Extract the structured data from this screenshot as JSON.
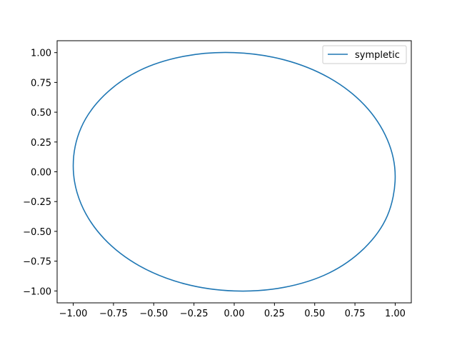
{
  "chart_data": {
    "type": "line",
    "title": "",
    "xlabel": "",
    "ylabel": "",
    "xlim": [
      -1.1,
      1.1
    ],
    "ylim": [
      -1.1,
      1.1
    ],
    "x_ticks": [
      -1.0,
      -0.75,
      -0.5,
      -0.25,
      0.0,
      0.25,
      0.5,
      0.75,
      1.0
    ],
    "x_tick_labels": [
      "−1.00",
      "−0.75",
      "−0.50",
      "−0.25",
      "0.00",
      "0.25",
      "0.50",
      "0.75",
      "1.00"
    ],
    "y_ticks": [
      1.0,
      0.75,
      0.5,
      0.25,
      0.0,
      -0.25,
      -0.5,
      -0.75,
      -1.0
    ],
    "y_tick_labels": [
      "1.00",
      "0.75",
      "0.50",
      "0.25",
      "0.00",
      "−0.25",
      "−0.50",
      "−0.75",
      "−1.00"
    ],
    "grid": false,
    "legend_position": "top-right",
    "series": [
      {
        "name": "sympletic",
        "color": "#1f77b4",
        "x": [
          1.0,
          0.951,
          0.809,
          0.588,
          0.309,
          0.0,
          -0.309,
          -0.588,
          -0.809,
          -0.951,
          -1.0,
          -0.951,
          -0.809,
          -0.588,
          -0.309,
          0.0,
          0.309,
          0.588,
          0.809,
          0.951,
          1.0
        ],
        "y": [
          -0.04,
          0.27,
          0.56,
          0.79,
          0.94,
          1.0,
          0.97,
          0.85,
          0.64,
          0.37,
          0.05,
          -0.27,
          -0.56,
          -0.79,
          -0.94,
          -1.0,
          -0.97,
          -0.85,
          -0.64,
          -0.37,
          -0.04
        ]
      }
    ]
  }
}
